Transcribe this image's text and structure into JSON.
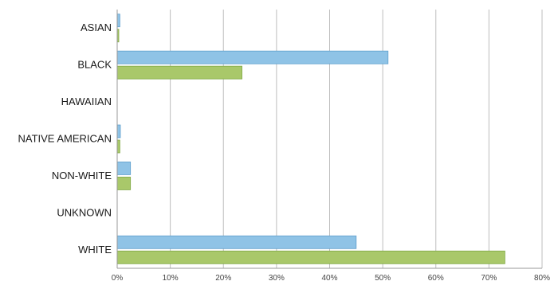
{
  "chart_data": {
    "type": "bar",
    "orientation": "horizontal",
    "categories": [
      "ASIAN",
      "BLACK",
      "HAWAIIAN",
      "NATIVE AMERICAN",
      "NON-WHITE",
      "UNKNOWN",
      "WHITE"
    ],
    "series": [
      {
        "color": "#8fc3e6",
        "values": [
          0.5,
          51,
          0,
          0.6,
          2.5,
          0,
          45
        ]
      },
      {
        "color": "#a9c86a",
        "values": [
          0.3,
          23.5,
          0,
          0.5,
          2.5,
          0,
          73
        ]
      }
    ],
    "x_ticks": [
      "0%",
      "10%",
      "20%",
      "30%",
      "40%",
      "50%",
      "60%",
      "70%",
      "80%"
    ],
    "xlim": [
      0,
      80
    ],
    "grid": "vertical",
    "legend": "none"
  }
}
